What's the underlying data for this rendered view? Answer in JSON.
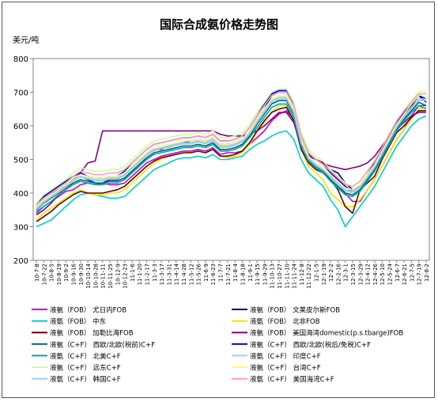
{
  "chart_data": {
    "type": "line",
    "title": "国际合成氨价格走势图",
    "ylabel": "美元/吨",
    "xlabel": "",
    "ylim": [
      200,
      800
    ],
    "yticks": [
      200,
      300,
      400,
      500,
      600,
      700,
      800
    ],
    "grid": false,
    "legend_position": "bottom",
    "x_tick_labels": [
      "10-7-8",
      "10-7-22",
      "10-8-5",
      "10-8-19",
      "10-9-2",
      "10-9-16",
      "10-9-30",
      "10-10-14",
      "10-10-28",
      "10-11-11",
      "10-11-25",
      "10-12-9",
      "10-12-23",
      "11-1-6",
      "11-1-20",
      "11-2-17",
      "11-3-3",
      "11-3-17",
      "11-3-31",
      "11-4-14",
      "11-4-28",
      "11-5-12",
      "11-5-26",
      "11-6-9",
      "11-6-23",
      "11-7-7",
      "11-7-21",
      "11-8-4",
      "11-8-18",
      "11-9-1",
      "11-9-15",
      "11-9-29",
      "11-10-13",
      "11-10-27",
      "11-11-10",
      "11-11-24",
      "11-12-8",
      "11-12-22",
      "12-1-5",
      "12-1-19",
      "12-2-2",
      "12-2-16",
      "12-3-1",
      "12-3-15",
      "12-3-29",
      "12-4-12",
      "12-4-26",
      "12-5-10",
      "12-5-24",
      "12-6-7",
      "12-6-21",
      "12-7-5",
      "12-7-19",
      "12-8-2"
    ],
    "x": [
      0,
      1,
      2,
      3,
      4,
      5,
      6,
      7,
      8,
      9,
      10,
      11,
      12,
      13,
      14,
      15,
      16,
      17,
      18,
      19,
      20,
      21,
      22,
      23,
      24,
      25,
      26,
      27,
      28,
      29,
      30,
      31,
      32,
      33,
      34,
      35,
      36,
      37,
      38,
      39,
      40,
      41,
      42,
      43,
      44,
      45,
      46,
      47,
      48,
      49,
      50,
      51,
      52,
      53
    ],
    "series": [
      {
        "name": "液氨（FOB）  尤日内FOB",
        "color": "#cc00cc",
        "values": [
          340,
          360,
          375,
          390,
          405,
          410,
          425,
          430,
          425,
          430,
          425,
          425,
          430,
          450,
          470,
          490,
          500,
          510,
          515,
          520,
          525,
          525,
          530,
          525,
          535,
          515,
          520,
          520,
          525,
          545,
          565,
          585,
          615,
          635,
          645,
          620,
          545,
          495,
          480,
          465,
          450,
          430,
          400,
          375,
          375,
          410,
          440,
          480,
          520,
          560,
          590,
          630,
          660,
          660
        ]
      },
      {
        "name": "液氨（FOB）  文莱皮尔斯FOB",
        "color": "#000080",
        "values": [
          360,
          385,
          400,
          410,
          420,
          440,
          450,
          440,
          430,
          430,
          440,
          440,
          455,
          480,
          500,
          515,
          530,
          530,
          540,
          545,
          550,
          555,
          560,
          555,
          565,
          545,
          545,
          550,
          560,
          585,
          620,
          650,
          690,
          700,
          700,
          660,
          560,
          510,
          500,
          490,
          470,
          460,
          430,
          410,
          420,
          450,
          480,
          520,
          560,
          600,
          630,
          660,
          690,
          670
        ]
      },
      {
        "name": "液氨（FOB）  中东",
        "color": "#00cccc",
        "values": [
          300,
          310,
          320,
          340,
          360,
          380,
          395,
          400,
          395,
          390,
          385,
          385,
          390,
          410,
          430,
          450,
          470,
          480,
          490,
          500,
          505,
          505,
          510,
          505,
          515,
          500,
          500,
          505,
          510,
          530,
          545,
          555,
          570,
          580,
          585,
          560,
          500,
          460,
          440,
          420,
          380,
          350,
          300,
          330,
          360,
          390,
          420,
          460,
          500,
          540,
          570,
          600,
          620,
          630
        ]
      },
      {
        "name": "液氨（FOB）  北非FOB",
        "color": "#e8e800",
        "values": [
          320,
          340,
          355,
          370,
          385,
          400,
          410,
          400,
          395,
          395,
          400,
          400,
          410,
          430,
          450,
          470,
          490,
          500,
          510,
          515,
          520,
          520,
          525,
          520,
          530,
          510,
          505,
          510,
          520,
          545,
          580,
          610,
          640,
          660,
          660,
          620,
          530,
          480,
          460,
          440,
          400,
          380,
          360,
          360,
          380,
          410,
          440,
          480,
          520,
          560,
          590,
          620,
          650,
          655
        ]
      },
      {
        "name": "液氨（FOB）  加勒比海FOB",
        "color": "#660000",
        "values": [
          315,
          330,
          345,
          365,
          380,
          395,
          405,
          400,
          400,
          400,
          405,
          410,
          420,
          440,
          460,
          480,
          495,
          505,
          510,
          515,
          520,
          520,
          525,
          520,
          530,
          510,
          510,
          515,
          525,
          550,
          585,
          615,
          640,
          650,
          655,
          615,
          530,
          490,
          470,
          460,
          440,
          410,
          360,
          340,
          410,
          430,
          450,
          500,
          540,
          580,
          600,
          625,
          645,
          645
        ]
      },
      {
        "name": "液氨（FOB）  美国海湾domestic(p.s.tbarge)FOB",
        "color": "#800080",
        "values": [
          335,
          350,
          370,
          395,
          420,
          440,
          460,
          490,
          495,
          585,
          585,
          585,
          585,
          585,
          585,
          585,
          585,
          585,
          585,
          585,
          585,
          585,
          585,
          585,
          585,
          575,
          570,
          570,
          570,
          575,
          585,
          600,
          620,
          640,
          640,
          610,
          540,
          515,
          500,
          490,
          480,
          475,
          470,
          475,
          480,
          490,
          510,
          540,
          570,
          590,
          610,
          630,
          640,
          640
        ]
      },
      {
        "name": "液氨（C+F）  西欧/北欧(税前)C+F",
        "color": "#006666",
        "values": [
          350,
          370,
          385,
          400,
          415,
          430,
          440,
          435,
          430,
          430,
          435,
          435,
          445,
          465,
          485,
          505,
          520,
          525,
          530,
          535,
          540,
          540,
          545,
          540,
          550,
          530,
          530,
          535,
          545,
          570,
          605,
          635,
          665,
          675,
          675,
          635,
          545,
          500,
          480,
          465,
          440,
          420,
          400,
          395,
          410,
          440,
          470,
          510,
          550,
          590,
          620,
          645,
          670,
          660
        ]
      },
      {
        "name": "液氨（C+F）  西欧/北欧(税后/免税)C+F",
        "color": "#0000cc",
        "values": [
          365,
          390,
          405,
          420,
          435,
          450,
          460,
          450,
          445,
          445,
          450,
          450,
          465,
          490,
          510,
          530,
          545,
          550,
          555,
          560,
          565,
          565,
          570,
          565,
          575,
          555,
          555,
          560,
          570,
          595,
          630,
          665,
          695,
          705,
          705,
          665,
          570,
          520,
          500,
          485,
          460,
          440,
          420,
          405,
          420,
          455,
          490,
          530,
          570,
          610,
          640,
          670,
          690,
          680
        ]
      },
      {
        "name": "液氨（C+F）  北美C+F",
        "color": "#00aaaa",
        "values": [
          345,
          360,
          375,
          395,
          410,
          425,
          435,
          430,
          425,
          425,
          430,
          430,
          440,
          460,
          480,
          500,
          515,
          520,
          525,
          530,
          535,
          535,
          540,
          535,
          545,
          525,
          525,
          530,
          540,
          565,
          595,
          625,
          655,
          665,
          665,
          625,
          540,
          495,
          475,
          460,
          435,
          415,
          395,
          390,
          405,
          435,
          465,
          505,
          545,
          585,
          615,
          640,
          660,
          650
        ]
      },
      {
        "name": "液氨（C+F）  印度C+F",
        "color": "#99ccff",
        "values": [
          355,
          375,
          390,
          405,
          420,
          440,
          450,
          445,
          440,
          440,
          445,
          445,
          455,
          475,
          495,
          515,
          530,
          535,
          540,
          545,
          550,
          550,
          555,
          550,
          560,
          540,
          540,
          545,
          555,
          580,
          615,
          645,
          675,
          685,
          685,
          645,
          555,
          505,
          485,
          470,
          450,
          430,
          410,
          405,
          420,
          450,
          480,
          520,
          560,
          600,
          630,
          655,
          680,
          680
        ]
      },
      {
        "name": "液氨（C+F）  远东C+F",
        "color": "#ccff99",
        "values": [
          370,
          395,
          410,
          425,
          440,
          460,
          475,
          470,
          465,
          465,
          470,
          470,
          480,
          500,
          520,
          540,
          555,
          560,
          565,
          570,
          575,
          575,
          580,
          575,
          585,
          565,
          565,
          570,
          580,
          605,
          640,
          670,
          700,
          710,
          710,
          670,
          580,
          530,
          510,
          495,
          470,
          450,
          430,
          420,
          435,
          465,
          495,
          535,
          575,
          615,
          645,
          675,
          700,
          705
        ]
      },
      {
        "name": "液氨（C+F）  台湾C+F",
        "color": "#ffff66",
        "values": [
          360,
          380,
          395,
          410,
          425,
          445,
          455,
          450,
          445,
          445,
          450,
          450,
          460,
          480,
          500,
          520,
          535,
          540,
          545,
          550,
          555,
          555,
          560,
          555,
          565,
          545,
          545,
          550,
          560,
          585,
          620,
          650,
          680,
          690,
          690,
          650,
          560,
          510,
          490,
          475,
          455,
          435,
          415,
          410,
          425,
          455,
          485,
          525,
          565,
          605,
          635,
          665,
          690,
          700
        ]
      },
      {
        "name": "液氨（C+F）  韩国C+F",
        "color": "#99ccff",
        "values": [
          352,
          372,
          388,
          402,
          418,
          436,
          448,
          442,
          436,
          436,
          442,
          442,
          452,
          472,
          492,
          512,
          526,
          532,
          536,
          542,
          546,
          546,
          552,
          546,
          556,
          536,
          536,
          542,
          552,
          576,
          610,
          640,
          670,
          680,
          680,
          640,
          550,
          502,
          482,
          468,
          446,
          426,
          406,
          402,
          416,
          446,
          476,
          516,
          556,
          596,
          626,
          652,
          676,
          675
        ]
      },
      {
        "name": "液氨（C+F）  美国海湾C+F",
        "color": "#ff99cc",
        "values": [
          365,
          385,
          400,
          415,
          430,
          450,
          465,
          460,
          455,
          455,
          460,
          460,
          470,
          490,
          510,
          530,
          545,
          550,
          555,
          560,
          565,
          565,
          570,
          565,
          575,
          555,
          555,
          560,
          570,
          595,
          630,
          660,
          690,
          700,
          700,
          660,
          570,
          520,
          500,
          485,
          465,
          445,
          425,
          420,
          435,
          465,
          495,
          535,
          575,
          615,
          645,
          670,
          695,
          695
        ]
      }
    ]
  }
}
